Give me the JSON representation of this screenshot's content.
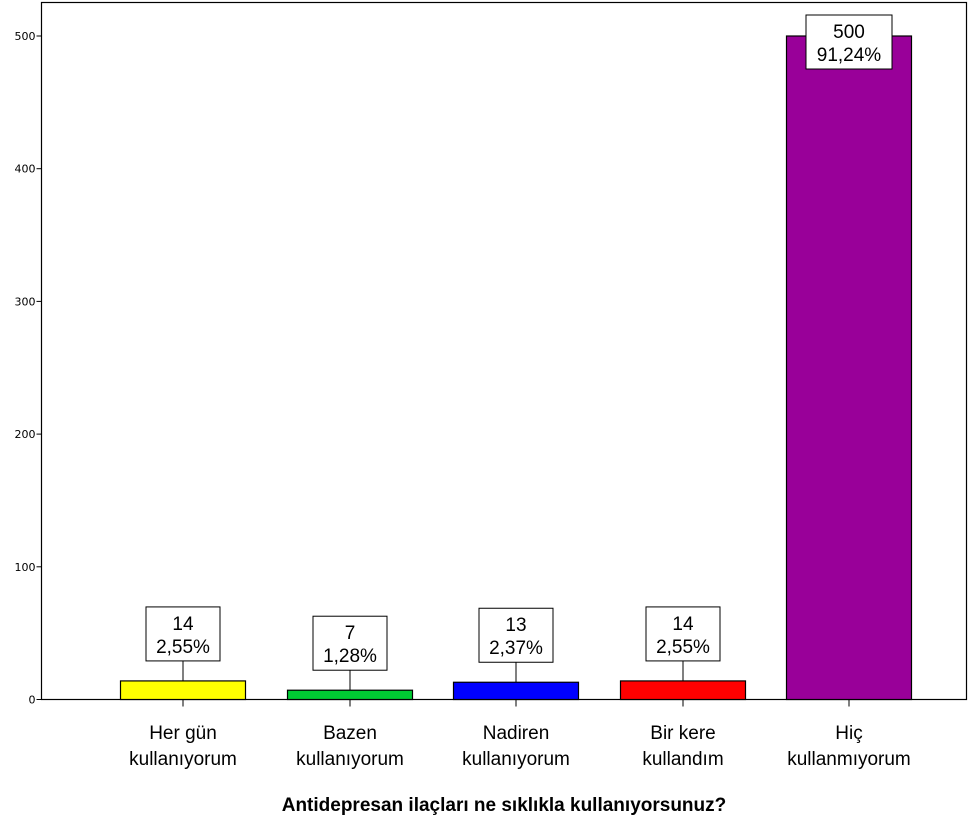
{
  "chart_data": {
    "type": "bar",
    "xlabel": "Antidepresan ilaçları ne sıklıkla kullanıyorsunuz?",
    "ylabel": "",
    "ylim": [
      0,
      525
    ],
    "yticks": [
      "0",
      "100",
      "200",
      "300",
      "400",
      "500"
    ],
    "grid": false,
    "categories": [
      {
        "line1": "Her gün",
        "line2": "kullanıyorum"
      },
      {
        "line1": "Bazen",
        "line2": "kullanıyorum"
      },
      {
        "line1": "Nadiren",
        "line2": "kullanıyorum"
      },
      {
        "line1": "Bir kere",
        "line2": "kullandım"
      },
      {
        "line1": "Hiç",
        "line2": "kullanmıyorum"
      }
    ],
    "values": [
      14,
      7,
      13,
      14,
      500
    ],
    "count_labels": [
      "14",
      "7",
      "13",
      "14",
      "500"
    ],
    "percent_labels": [
      "2,55%",
      "1,28%",
      "2,37%",
      "2,55%",
      "91,24%"
    ],
    "colors": [
      "#ffff00",
      "#00cc33",
      "#0000ff",
      "#ff0000",
      "#990099"
    ]
  }
}
